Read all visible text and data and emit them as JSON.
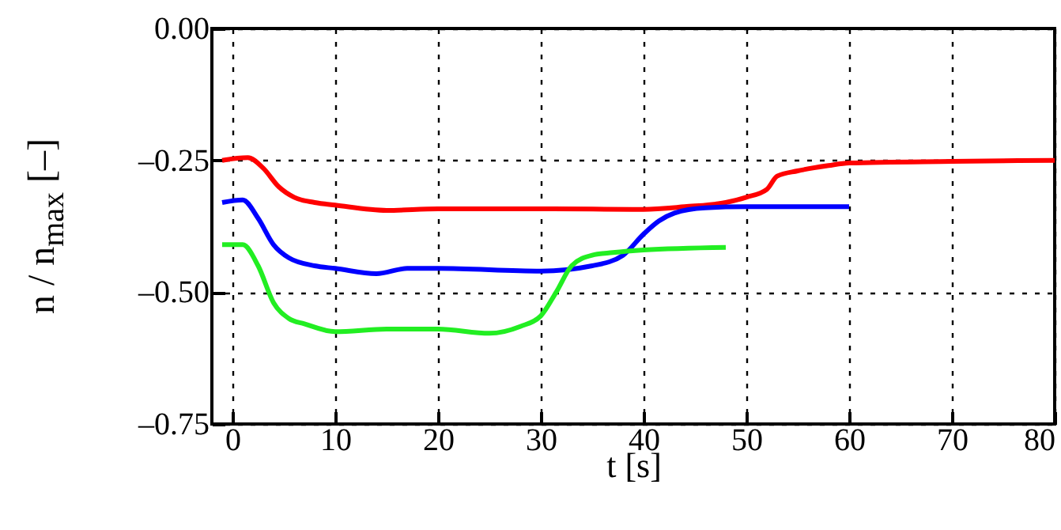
{
  "chart_data": {
    "type": "line",
    "xlabel": "t [s]",
    "ylabel": "n / n$_{max}$ [–]",
    "xlim": [
      -2,
      80
    ],
    "xticks": [
      0,
      10,
      20,
      30,
      40,
      50,
      60,
      70,
      80
    ],
    "ylim": [
      -0.75,
      0
    ],
    "yticks": [
      {
        "value": -0.75,
        "label": "–0.75"
      },
      {
        "value": -0.5,
        "label": "–0.50"
      },
      {
        "value": -0.25,
        "label": "–0.25"
      },
      {
        "value": 0,
        "label": "0.00"
      }
    ],
    "grid": true,
    "marker": "none",
    "line_style": "solid",
    "series": [
      {
        "color": "#ff0000",
        "x": [
          -1,
          1.5,
          3,
          4.5,
          6,
          8,
          10,
          15,
          20,
          30,
          40,
          44,
          48,
          50,
          52,
          53,
          55,
          58,
          60,
          70,
          80
        ],
        "values": [
          -0.25,
          -0.245,
          -0.265,
          -0.3,
          -0.32,
          -0.33,
          -0.335,
          -0.345,
          -0.342,
          -0.342,
          -0.343,
          -0.338,
          -0.33,
          -0.32,
          -0.305,
          -0.28,
          -0.27,
          -0.26,
          -0.255,
          -0.252,
          -0.25
        ]
      },
      {
        "color": "#0000ff",
        "x": [
          -1,
          1,
          2.5,
          4,
          5.5,
          8,
          10,
          14,
          17,
          20,
          30,
          35,
          38,
          40,
          41.5,
          43,
          46,
          50,
          60
        ],
        "values": [
          -0.33,
          -0.325,
          -0.36,
          -0.41,
          -0.435,
          -0.45,
          -0.455,
          -0.465,
          -0.455,
          -0.455,
          -0.46,
          -0.45,
          -0.43,
          -0.39,
          -0.365,
          -0.35,
          -0.34,
          -0.338,
          -0.338
        ]
      },
      {
        "color": "#22ee22",
        "x": [
          -1,
          1,
          2.5,
          4,
          5.5,
          7,
          10,
          15,
          20,
          25,
          28,
          30,
          31.5,
          33,
          35,
          37,
          40,
          48
        ],
        "values": [
          -0.41,
          -0.41,
          -0.45,
          -0.52,
          -0.55,
          -0.56,
          -0.575,
          -0.57,
          -0.57,
          -0.578,
          -0.565,
          -0.545,
          -0.5,
          -0.45,
          -0.43,
          -0.425,
          -0.42,
          -0.415
        ]
      }
    ]
  }
}
